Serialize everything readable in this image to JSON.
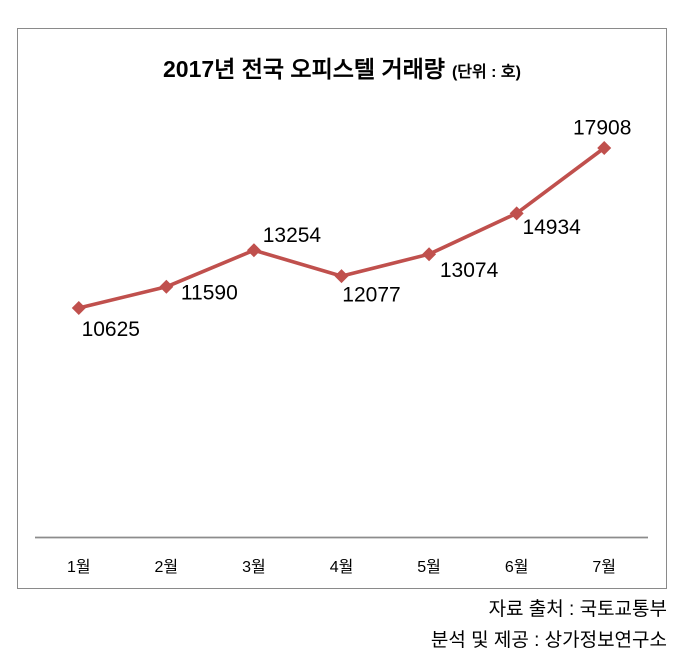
{
  "chart_data": {
    "type": "line",
    "title": "2017년 전국 오피스텔 거래량",
    "title_suffix": "(단위 : 호)",
    "categories": [
      "1월",
      "2월",
      "3월",
      "4월",
      "5월",
      "6월",
      "7월"
    ],
    "series": [
      {
        "values": [
          10625,
          11590,
          13254,
          12077,
          13074,
          14934,
          17908
        ]
      }
    ],
    "data_labels_visible": true,
    "marker_shape": "diamond",
    "line_color": "#C0504D",
    "axis_color": "#8C8C8C",
    "frame_color": "#8A8A8A",
    "text_color": "#000000",
    "grid": "off",
    "legend": "none",
    "y_axis": "hidden",
    "footer": [
      "자료 출처 : 국토교통부",
      "분석 및 제공 : 상가정보연구소"
    ]
  }
}
